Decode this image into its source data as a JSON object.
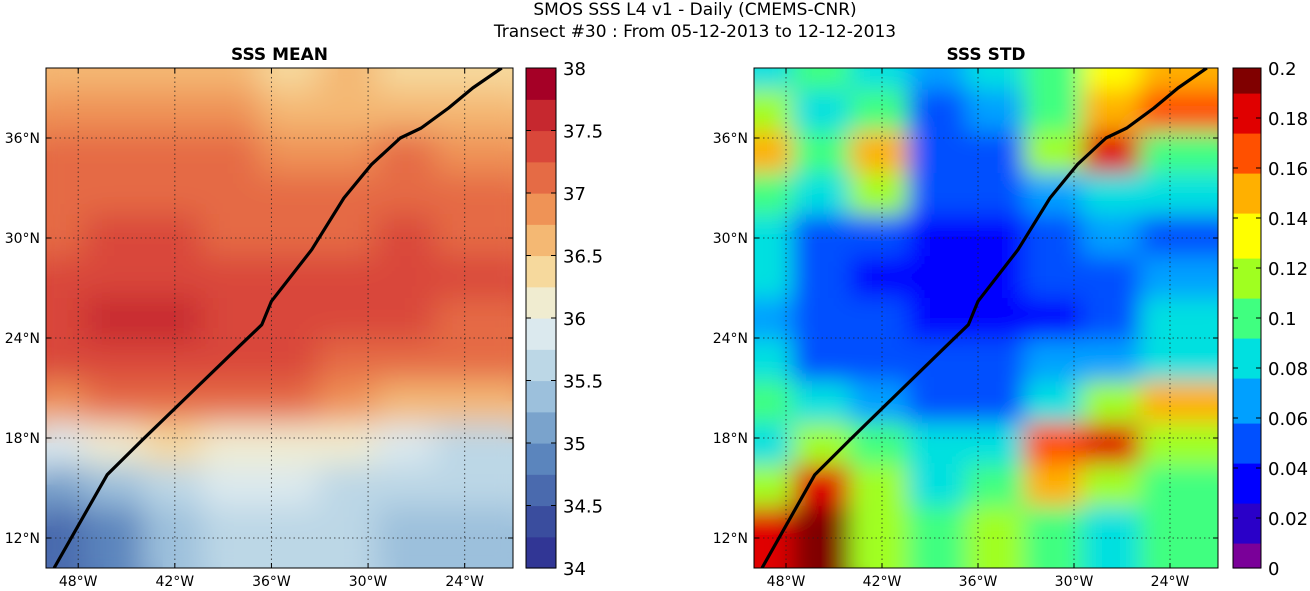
{
  "suptitle": {
    "line1": "SMOS SSS L4 v1 - Daily (CMEMS-CNR)",
    "line2": "Transect #30 : From 05-12-2013 to 12-12-2013"
  },
  "chart_data": [
    {
      "type": "heatmap",
      "title": "SSS MEAN",
      "x_ticks": [
        "48°W",
        "42°W",
        "36°W",
        "30°W",
        "24°W"
      ],
      "x_tick_values": [
        -48,
        -42,
        -36,
        -30,
        -24
      ],
      "y_ticks": [
        "12°N",
        "18°N",
        "24°N",
        "30°N",
        "36°N"
      ],
      "y_tick_values": [
        12,
        18,
        24,
        30,
        36
      ],
      "xlim": [
        -50,
        -21
      ],
      "ylim": [
        10.2,
        40.2
      ],
      "grid": true,
      "colorbar": {
        "range": [
          34,
          38
        ],
        "ticks": [
          "34",
          "34.5",
          "35",
          "35.5",
          "36",
          "36.5",
          "37",
          "37.5",
          "38"
        ],
        "tick_values": [
          34,
          34.5,
          35,
          35.5,
          36,
          36.5,
          37,
          37.5,
          38
        ],
        "levels": 16,
        "colors": [
          "#313695",
          "#3a4d9e",
          "#4a6aae",
          "#5b85bd",
          "#7aa3cc",
          "#9cc0dc",
          "#bcd7e6",
          "#dbe9ee",
          "#f0ecd0",
          "#f6d99d",
          "#f4b873",
          "#ef9356",
          "#e56b45",
          "#d9473a",
          "#c6282f",
          "#a50026"
        ]
      },
      "field": {
        "description_levels": "SSS values in psu",
        "rows_latitude": [
          39.5,
          37.0,
          34.5,
          32.0,
          29.5,
          27.0,
          24.5,
          22.0,
          19.5,
          17.0,
          14.5,
          12.0
        ],
        "cols_longitude": [
          -49.0,
          -45.0,
          -41.0,
          -37.0,
          -33.0,
          -29.0,
          -25.0,
          -22.0
        ],
        "values": [
          [
            36.7,
            36.6,
            36.6,
            36.5,
            36.4,
            36.5,
            36.4,
            36.3
          ],
          [
            36.8,
            36.8,
            36.9,
            36.8,
            36.7,
            36.6,
            36.7,
            36.6
          ],
          [
            37.0,
            37.0,
            37.1,
            37.0,
            36.9,
            36.9,
            37.0,
            36.9
          ],
          [
            37.2,
            37.1,
            37.2,
            37.1,
            37.0,
            37.1,
            37.2,
            37.1
          ],
          [
            37.2,
            37.3,
            37.3,
            37.2,
            37.2,
            37.2,
            37.3,
            37.2
          ],
          [
            37.3,
            37.4,
            37.4,
            37.4,
            37.3,
            37.3,
            37.4,
            37.3
          ],
          [
            37.4,
            37.5,
            37.5,
            37.4,
            37.4,
            37.3,
            37.3,
            37.2
          ],
          [
            37.3,
            37.4,
            37.4,
            37.4,
            37.3,
            37.2,
            37.1,
            37.0
          ],
          [
            36.9,
            37.1,
            37.2,
            37.1,
            37.0,
            36.8,
            36.6,
            36.5
          ],
          [
            35.8,
            36.1,
            36.3,
            36.2,
            36.2,
            36.0,
            35.8,
            35.7
          ],
          [
            35.0,
            35.3,
            35.7,
            35.9,
            35.8,
            35.6,
            35.5,
            35.5
          ],
          [
            34.6,
            34.9,
            35.4,
            35.7,
            35.6,
            35.5,
            35.4,
            35.3
          ]
        ]
      },
      "transect": {
        "color": "#000000",
        "lon": [
          -49.5,
          -46.2,
          -44.0,
          -41.0,
          -38.0,
          -36.6,
          -36.0,
          -33.5,
          -31.5,
          -29.8,
          -28.0,
          -26.7,
          -25.0,
          -23.5,
          -21.7
        ],
        "lat": [
          10.2,
          15.8,
          17.9,
          20.7,
          23.5,
          24.8,
          26.2,
          29.3,
          32.4,
          34.4,
          36.0,
          36.6,
          37.8,
          39.0,
          40.2
        ]
      }
    },
    {
      "type": "heatmap",
      "title": "SSS STD",
      "x_ticks": [
        "48°W",
        "42°W",
        "36°W",
        "30°W",
        "24°W"
      ],
      "x_tick_values": [
        -48,
        -42,
        -36,
        -30,
        -24
      ],
      "y_ticks": [
        "12°N",
        "18°N",
        "24°N",
        "30°N",
        "36°N"
      ],
      "y_tick_values": [
        12,
        18,
        24,
        30,
        36
      ],
      "xlim": [
        -50,
        -21
      ],
      "ylim": [
        10.2,
        40.2
      ],
      "grid": true,
      "colorbar": {
        "range": [
          0,
          0.2
        ],
        "ticks": [
          "0",
          "0.02",
          "0.04",
          "0.06",
          "0.08",
          "0.1",
          "0.12",
          "0.14",
          "0.16",
          "0.18",
          "0.2"
        ],
        "tick_values": [
          0,
          0.02,
          0.04,
          0.06,
          0.08,
          0.1,
          0.12,
          0.14,
          0.16,
          0.18,
          0.2
        ],
        "colors": [
          "#7a0099",
          "#2a00c8",
          "#0000ff",
          "#0050ff",
          "#00a0ff",
          "#00e0e0",
          "#40ff80",
          "#a0ff20",
          "#ffff00",
          "#ffb000",
          "#ff5000",
          "#e00000",
          "#800000"
        ]
      },
      "field": {
        "rows_latitude": [
          39.5,
          37.0,
          34.5,
          32.0,
          29.5,
          27.0,
          24.5,
          22.0,
          19.5,
          17.0,
          14.5,
          12.0
        ],
        "cols_longitude": [
          -49.0,
          -45.0,
          -41.0,
          -37.0,
          -33.0,
          -29.0,
          -25.0,
          -22.0
        ],
        "values": [
          [
            0.08,
            0.1,
            0.09,
            0.07,
            0.09,
            0.1,
            0.13,
            0.15
          ],
          [
            0.12,
            0.09,
            0.1,
            0.05,
            0.07,
            0.1,
            0.15,
            0.16
          ],
          [
            0.14,
            0.1,
            0.15,
            0.05,
            0.06,
            0.11,
            0.17,
            0.1
          ],
          [
            0.1,
            0.08,
            0.12,
            0.06,
            0.05,
            0.07,
            0.09,
            0.08
          ],
          [
            0.09,
            0.06,
            0.05,
            0.04,
            0.04,
            0.05,
            0.07,
            0.06
          ],
          [
            0.09,
            0.05,
            0.04,
            0.04,
            0.04,
            0.05,
            0.06,
            0.07
          ],
          [
            0.07,
            0.05,
            0.05,
            0.04,
            0.04,
            0.04,
            0.06,
            0.08
          ],
          [
            0.08,
            0.06,
            0.06,
            0.05,
            0.06,
            0.07,
            0.07,
            0.09
          ],
          [
            0.1,
            0.08,
            0.07,
            0.06,
            0.06,
            0.09,
            0.12,
            0.14
          ],
          [
            0.09,
            0.12,
            0.1,
            0.08,
            0.09,
            0.16,
            0.17,
            0.12
          ],
          [
            0.12,
            0.17,
            0.11,
            0.09,
            0.1,
            0.14,
            0.11,
            0.1
          ],
          [
            0.18,
            0.2,
            0.12,
            0.1,
            0.12,
            0.1,
            0.09,
            0.1
          ]
        ]
      },
      "transect": {
        "color": "#000000",
        "lon": [
          -49.5,
          -46.2,
          -44.0,
          -41.0,
          -38.0,
          -36.6,
          -36.0,
          -33.5,
          -31.5,
          -29.8,
          -28.0,
          -26.7,
          -25.0,
          -23.5,
          -21.7
        ],
        "lat": [
          10.2,
          15.8,
          17.9,
          20.7,
          23.5,
          24.8,
          26.2,
          29.3,
          32.4,
          34.4,
          36.0,
          36.6,
          37.8,
          39.0,
          40.2
        ]
      }
    }
  ]
}
